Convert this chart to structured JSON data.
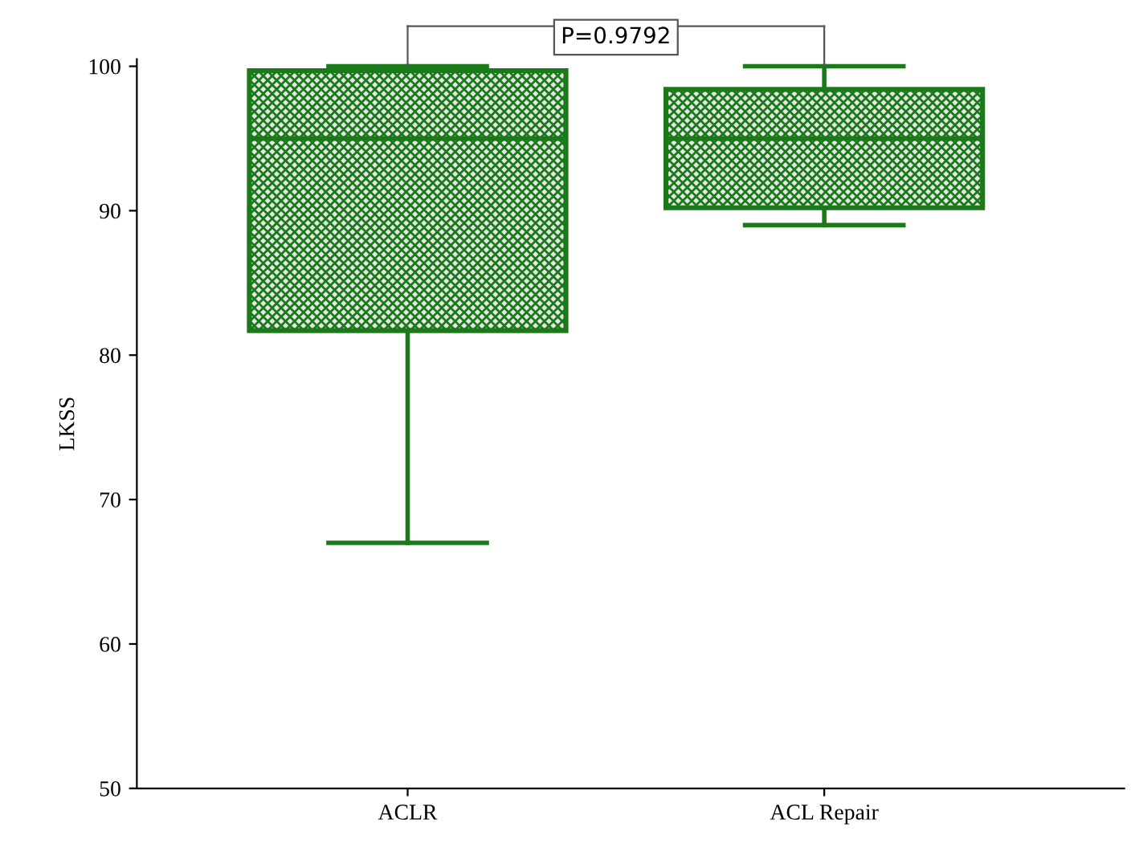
{
  "chart_data": {
    "type": "box",
    "ylabel": "LKSS",
    "categories": [
      "ACLR",
      "ACL Repair"
    ],
    "boxes": [
      {
        "low": 67,
        "q1": 81.7,
        "median": 95,
        "q3": 99.7,
        "high": 100
      },
      {
        "low": 89,
        "q1": 90.2,
        "median": 95,
        "q3": 98.4,
        "high": 100
      }
    ],
    "color": "#1a7a1a",
    "ylim": [
      50,
      100.5
    ],
    "yticks": [
      50,
      60,
      70,
      80,
      90,
      100
    ],
    "grid": false,
    "legend": false,
    "annotations": [
      "P=0.9792"
    ]
  }
}
